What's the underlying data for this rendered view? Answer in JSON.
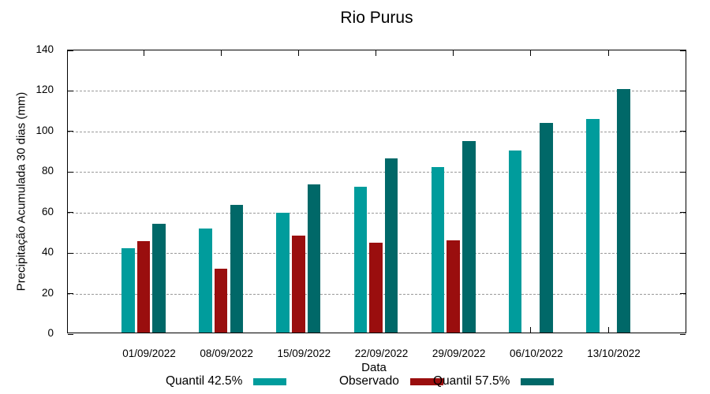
{
  "chart_data": {
    "type": "bar",
    "title": "Rio Purus",
    "xlabel": "Data",
    "ylabel": "Precipitação Acumulada 30 dias (mm)",
    "categories": [
      "01/09/2022",
      "08/09/2022",
      "15/09/2022",
      "22/09/2022",
      "29/09/2022",
      "06/10/2022",
      "13/10/2022"
    ],
    "series": [
      {
        "name": "Quantil 42.5%",
        "color": "#009C9C",
        "values": [
          41.5,
          51.5,
          59,
          72,
          81.5,
          90,
          105.5
        ]
      },
      {
        "name": "Observado",
        "color": "#9A0E0E",
        "values": [
          45,
          31.5,
          48,
          44.5,
          45.5,
          null,
          null
        ]
      },
      {
        "name": "Quantil 57.5%",
        "color": "#006868",
        "values": [
          53.5,
          63,
          73,
          86,
          94.5,
          103.5,
          120
        ]
      }
    ],
    "ylim": [
      0,
      140
    ],
    "yticks": [
      0,
      20,
      40,
      60,
      80,
      100,
      120,
      140
    ],
    "grid": "horizontal-dashed-gray",
    "axis_box": true,
    "legend_position": "bottom"
  }
}
